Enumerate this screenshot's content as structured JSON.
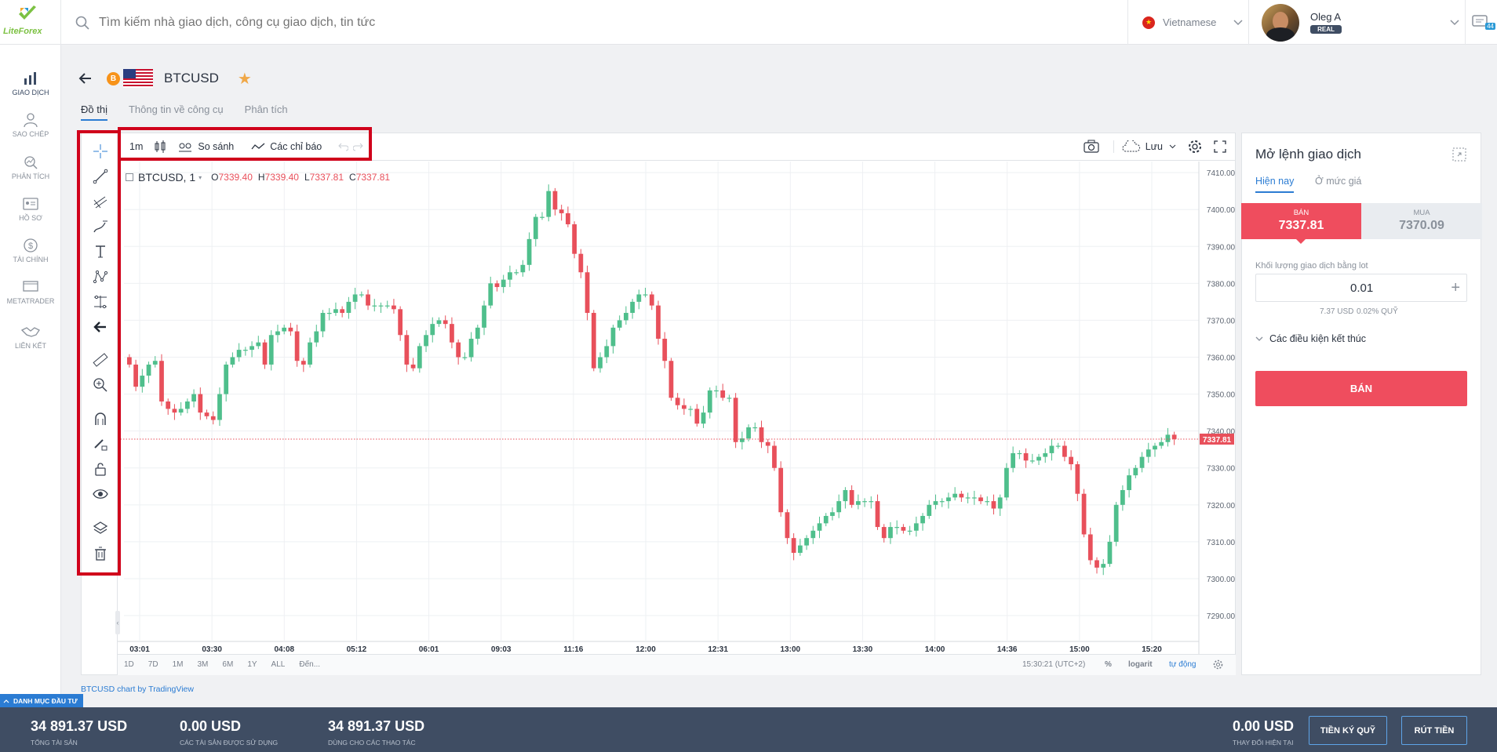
{
  "header": {
    "logo_text": "LiteForex",
    "search_placeholder": "Tìm kiếm nhà giao dịch, công cụ giao dịch, tin tức",
    "language": "Vietnamese",
    "user_name": "Oleg A",
    "account_type": "REAL",
    "messages_count": "44"
  },
  "sidebar": {
    "items": [
      {
        "label": "GIAO DỊCH",
        "icon": "chart-bars-icon"
      },
      {
        "label": "SAO CHÉP",
        "icon": "copy-user-icon"
      },
      {
        "label": "PHÂN TÍCH",
        "icon": "analytics-icon"
      },
      {
        "label": "HỒ SƠ",
        "icon": "profile-card-icon"
      },
      {
        "label": "TÀI CHÍNH",
        "icon": "dollar-icon"
      },
      {
        "label": "METATRADER",
        "icon": "monitor-icon"
      },
      {
        "label": "LIÊN KẾT",
        "icon": "handshake-icon"
      }
    ]
  },
  "instrument": {
    "symbol": "BTCUSD",
    "coin_badge": "B"
  },
  "tabs": [
    {
      "label": "Đồ thị",
      "active": true
    },
    {
      "label": "Thông tin về công cụ",
      "active": false
    },
    {
      "label": "Phân tích",
      "active": false
    }
  ],
  "chart_toolbar": {
    "interval": "1m",
    "compare": "So sánh",
    "indicators": "Các chỉ báo",
    "save": "Lưu"
  },
  "legend": {
    "symbol": "BTCUSD, 1",
    "o_label": "O",
    "o_value": "7339.40",
    "h_label": "H",
    "h_value": "7339.40",
    "l_label": "L",
    "l_value": "7337.81",
    "c_label": "C",
    "c_value": "7337.81"
  },
  "ranges": [
    "1D",
    "7D",
    "1M",
    "3M",
    "6M",
    "1Y",
    "ALL",
    "Đến..."
  ],
  "bottom_status": {
    "time": "15:30:21 (UTC+2)",
    "percent": "%",
    "log": "logarit",
    "auto": "tự động"
  },
  "credit": "BTCUSD chart by TradingView",
  "chart_data": {
    "type": "candlestick",
    "title": "BTCUSD, 1",
    "x_ticks": [
      "03:01",
      "03:30",
      "04:08",
      "05:12",
      "06:01",
      "09:03",
      "11:16",
      "12:00",
      "12:31",
      "13:00",
      "13:30",
      "14:00",
      "14:36",
      "15:00",
      "15:20"
    ],
    "y_ticks": [
      7410.0,
      7400.0,
      7390.0,
      7380.0,
      7370.0,
      7360.0,
      7350.0,
      7340.0,
      7330.0,
      7320.0,
      7310.0,
      7300.0,
      7290.0
    ],
    "ylim": [
      7283,
      7413
    ],
    "last_price": 7337.81,
    "last_price_label": "7337.81",
    "up_color": "#4fbf8c",
    "down_color": "#e8505b",
    "closes": [
      7358,
      7352,
      7355,
      7358,
      7359,
      7348,
      7346,
      7345,
      7346,
      7348,
      7350,
      7345,
      7344,
      7343,
      7350,
      7358,
      7360,
      7362,
      7362,
      7363,
      7364,
      7358,
      7366,
      7367,
      7368,
      7367,
      7359,
      7358,
      7364,
      7367,
      7372,
      7372,
      7373,
      7372,
      7375,
      7377,
      7377,
      7374,
      7374,
      7374,
      7374,
      7373,
      7366,
      7358,
      7357,
      7363,
      7366,
      7369,
      7370,
      7369,
      7364,
      7360,
      7360,
      7365,
      7368,
      7374,
      7380,
      7379,
      7381,
      7383,
      7383,
      7385,
      7392,
      7398,
      7398,
      7405,
      7400,
      7399,
      7396,
      7388,
      7383,
      7372,
      7357,
      7360,
      7363,
      7368,
      7370,
      7372,
      7375,
      7377,
      7377,
      7374,
      7365,
      7359,
      7349,
      7347,
      7346,
      7346,
      7342,
      7345,
      7351,
      7351,
      7349,
      7349,
      7337,
      7338,
      7341,
      7341,
      7337,
      7336,
      7330,
      7318,
      7311,
      7307,
      7309,
      7311,
      7313,
      7315,
      7317,
      7318,
      7321,
      7324,
      7320,
      7321,
      7321,
      7321,
      7314,
      7311,
      7314,
      7314,
      7313,
      7313,
      7315,
      7317,
      7320,
      7321,
      7321,
      7322,
      7323,
      7322,
      7322,
      7322,
      7321,
      7321,
      7319,
      7322,
      7330,
      7334,
      7334,
      7332,
      7332,
      7333,
      7334,
      7336,
      7336,
      7333,
      7331,
      7323,
      7312,
      7305,
      7303,
      7304,
      7310,
      7320,
      7324,
      7328,
      7330,
      7333,
      7335,
      7336,
      7337,
      7339,
      7337.81
    ]
  }
}
